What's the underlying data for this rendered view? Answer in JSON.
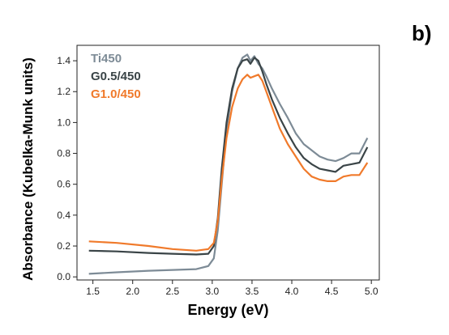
{
  "panel_label": "b)",
  "chart_data": {
    "type": "line",
    "title": "",
    "xlabel": "Energy (eV)",
    "ylabel": "Absorbance (Kubelka-Munk units)",
    "xlim": [
      1.3,
      5.1
    ],
    "ylim": [
      -0.02,
      1.5
    ],
    "xticks": [
      "1.5",
      "2.0",
      "2.5",
      "3.0",
      "3.5",
      "4.0",
      "4.5",
      "5.0"
    ],
    "yticks": [
      "0.0",
      "0.2",
      "0.4",
      "0.6",
      "0.8",
      "1.0",
      "1.2",
      "1.4"
    ],
    "grid": false,
    "legend_position": "top-left",
    "series": [
      {
        "name": "Ti450",
        "color": "#7d8b96",
        "x": [
          1.45,
          1.8,
          2.2,
          2.5,
          2.8,
          2.95,
          3.02,
          3.07,
          3.12,
          3.18,
          3.25,
          3.32,
          3.38,
          3.44,
          3.48,
          3.53,
          3.58,
          3.63,
          3.68,
          3.75,
          3.85,
          3.95,
          4.05,
          4.15,
          4.25,
          4.35,
          4.45,
          4.55,
          4.65,
          4.75,
          4.85,
          4.95
        ],
        "y": [
          0.02,
          0.03,
          0.04,
          0.045,
          0.05,
          0.07,
          0.12,
          0.3,
          0.6,
          0.95,
          1.2,
          1.35,
          1.42,
          1.44,
          1.4,
          1.43,
          1.38,
          1.35,
          1.3,
          1.22,
          1.12,
          1.03,
          0.93,
          0.86,
          0.82,
          0.78,
          0.76,
          0.75,
          0.77,
          0.8,
          0.8,
          0.9
        ]
      },
      {
        "name": "G0.5/450",
        "color": "#3a4447",
        "x": [
          1.45,
          1.8,
          2.2,
          2.5,
          2.8,
          2.95,
          3.02,
          3.07,
          3.12,
          3.18,
          3.25,
          3.32,
          3.38,
          3.44,
          3.48,
          3.53,
          3.58,
          3.63,
          3.68,
          3.75,
          3.85,
          3.95,
          4.05,
          4.15,
          4.25,
          4.35,
          4.45,
          4.55,
          4.65,
          4.75,
          4.85,
          4.95
        ],
        "y": [
          0.17,
          0.165,
          0.155,
          0.15,
          0.145,
          0.15,
          0.2,
          0.38,
          0.7,
          1.0,
          1.22,
          1.35,
          1.4,
          1.41,
          1.38,
          1.42,
          1.4,
          1.33,
          1.25,
          1.15,
          1.03,
          0.93,
          0.84,
          0.77,
          0.73,
          0.7,
          0.69,
          0.68,
          0.72,
          0.73,
          0.74,
          0.84
        ]
      },
      {
        "name": "G1.0/450",
        "color": "#f07a2b",
        "x": [
          1.45,
          1.8,
          2.2,
          2.5,
          2.8,
          2.95,
          3.02,
          3.07,
          3.12,
          3.18,
          3.25,
          3.32,
          3.38,
          3.44,
          3.48,
          3.53,
          3.58,
          3.63,
          3.68,
          3.75,
          3.85,
          3.95,
          4.05,
          4.15,
          4.25,
          4.35,
          4.45,
          4.55,
          4.65,
          4.75,
          4.85,
          4.95
        ],
        "y": [
          0.23,
          0.22,
          0.2,
          0.18,
          0.17,
          0.18,
          0.22,
          0.36,
          0.63,
          0.9,
          1.1,
          1.22,
          1.28,
          1.31,
          1.29,
          1.3,
          1.31,
          1.27,
          1.2,
          1.1,
          0.96,
          0.86,
          0.78,
          0.7,
          0.65,
          0.63,
          0.62,
          0.62,
          0.65,
          0.66,
          0.66,
          0.74
        ]
      }
    ]
  }
}
